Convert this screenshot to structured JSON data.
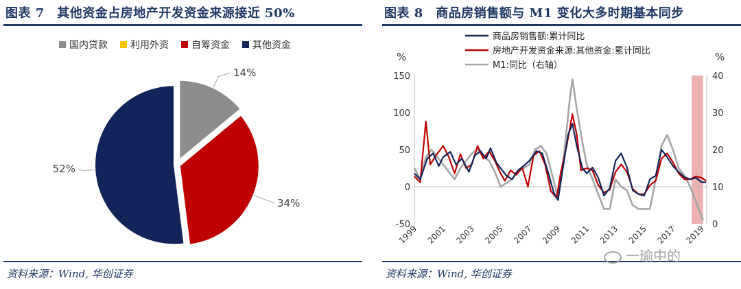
{
  "left": {
    "title": "图表 7　其他资金占房地产开发资金来源接近 50%",
    "source": "资料来源：Wind, 华创证券",
    "chart_data": {
      "type": "pie",
      "legend_position": "top",
      "legend": [
        "国内贷款",
        "利用外资",
        "自筹资金",
        "其他资金"
      ],
      "labels": [
        "国内贷款",
        "利用外资",
        "自筹资金",
        "其他资金"
      ],
      "values": [
        14,
        0,
        34,
        52
      ],
      "value_labels": [
        "14%",
        "",
        "34%",
        "52%"
      ],
      "colors": [
        "#8c8c8c",
        "#f5c200",
        "#c00000",
        "#13245a"
      ]
    }
  },
  "right": {
    "title": "图表 8　商品房销售额与 M1 变化大多时期基本同步",
    "source": "资料来源：Wind, 华创证券",
    "chart_data": {
      "type": "line",
      "legend_position": "top-left",
      "left_unit": "%",
      "right_unit": "%",
      "ylim_left": [
        -50,
        150
      ],
      "ylim_right": [
        0,
        40
      ],
      "left_ticks": [
        "150",
        "100",
        "50",
        "0",
        "-50"
      ],
      "right_ticks": [
        "40",
        "30",
        "20",
        "10",
        "0"
      ],
      "x_ticks": [
        "1999",
        "2001",
        "2003",
        "2005",
        "2007",
        "2009",
        "2011",
        "2013",
        "2015",
        "2017",
        "2019"
      ],
      "highlight_range": [
        2018.3,
        2019.1
      ],
      "highlight_color": "#e7a3a3",
      "series": [
        {
          "name": "商品房销售额:累计同比",
          "axis": "left",
          "color": "#13245a",
          "width": 2.2,
          "points": [
            [
              1999.0,
              18
            ],
            [
              1999.4,
              10
            ],
            [
              1999.9,
              38
            ],
            [
              2000.3,
              45
            ],
            [
              2000.7,
              28
            ],
            [
              2001.0,
              40
            ],
            [
              2001.5,
              47
            ],
            [
              2001.9,
              30
            ],
            [
              2002.3,
              38
            ],
            [
              2002.8,
              20
            ],
            [
              2003.2,
              42
            ],
            [
              2003.6,
              48
            ],
            [
              2004.0,
              38
            ],
            [
              2004.3,
              52
            ],
            [
              2004.7,
              33
            ],
            [
              2005.0,
              25
            ],
            [
              2005.4,
              15
            ],
            [
              2005.8,
              10
            ],
            [
              2006.2,
              22
            ],
            [
              2006.6,
              28
            ],
            [
              2007.0,
              35
            ],
            [
              2007.5,
              48
            ],
            [
              2007.9,
              45
            ],
            [
              2008.3,
              20
            ],
            [
              2008.7,
              -8
            ],
            [
              2009.0,
              -18
            ],
            [
              2009.3,
              20
            ],
            [
              2009.7,
              70
            ],
            [
              2010.0,
              85
            ],
            [
              2010.3,
              55
            ],
            [
              2010.7,
              25
            ],
            [
              2011.0,
              18
            ],
            [
              2011.4,
              26
            ],
            [
              2011.8,
              12
            ],
            [
              2012.2,
              -12
            ],
            [
              2012.6,
              -2
            ],
            [
              2013.0,
              35
            ],
            [
              2013.4,
              45
            ],
            [
              2013.8,
              26
            ],
            [
              2014.2,
              -5
            ],
            [
              2014.6,
              -10
            ],
            [
              2015.0,
              -12
            ],
            [
              2015.4,
              10
            ],
            [
              2015.8,
              15
            ],
            [
              2016.2,
              50
            ],
            [
              2016.6,
              40
            ],
            [
              2017.0,
              28
            ],
            [
              2017.4,
              20
            ],
            [
              2017.8,
              13
            ],
            [
              2018.2,
              10
            ],
            [
              2018.6,
              12
            ],
            [
              2019.0,
              6
            ],
            [
              2019.3,
              6
            ]
          ]
        },
        {
          "name": "房地产开发资金来源:其他资金:累计同比",
          "axis": "left",
          "color": "#c00000",
          "width": 2.2,
          "points": [
            [
              1999.0,
              14
            ],
            [
              1999.4,
              6
            ],
            [
              1999.8,
              88
            ],
            [
              2000.1,
              30
            ],
            [
              2000.5,
              42
            ],
            [
              2001.0,
              55
            ],
            [
              2001.4,
              40
            ],
            [
              2001.8,
              18
            ],
            [
              2002.2,
              44
            ],
            [
              2002.6,
              25
            ],
            [
              2003.0,
              30
            ],
            [
              2003.4,
              55
            ],
            [
              2003.8,
              38
            ],
            [
              2004.2,
              48
            ],
            [
              2004.6,
              35
            ],
            [
              2005.0,
              18
            ],
            [
              2005.3,
              8
            ],
            [
              2005.7,
              22
            ],
            [
              2006.1,
              16
            ],
            [
              2006.5,
              26
            ],
            [
              2006.9,
              0
            ],
            [
              2007.3,
              42
            ],
            [
              2007.7,
              48
            ],
            [
              2008.1,
              30
            ],
            [
              2008.5,
              -6
            ],
            [
              2008.9,
              -15
            ],
            [
              2009.2,
              20
            ],
            [
              2009.6,
              55
            ],
            [
              2010.0,
              98
            ],
            [
              2010.3,
              70
            ],
            [
              2010.6,
              22
            ],
            [
              2011.0,
              25
            ],
            [
              2011.4,
              22
            ],
            [
              2011.8,
              2
            ],
            [
              2012.2,
              -8
            ],
            [
              2012.6,
              -4
            ],
            [
              2013.0,
              20
            ],
            [
              2013.4,
              30
            ],
            [
              2013.8,
              20
            ],
            [
              2014.2,
              -3
            ],
            [
              2014.6,
              -10
            ],
            [
              2015.0,
              -10
            ],
            [
              2015.4,
              2
            ],
            [
              2015.8,
              8
            ],
            [
              2016.2,
              38
            ],
            [
              2016.6,
              45
            ],
            [
              2017.0,
              33
            ],
            [
              2017.4,
              18
            ],
            [
              2017.8,
              10
            ],
            [
              2018.2,
              10
            ],
            [
              2018.6,
              14
            ],
            [
              2019.0,
              12
            ],
            [
              2019.3,
              8
            ]
          ]
        },
        {
          "name": "M1:同比（右轴）",
          "axis": "right",
          "color": "#a6a6a6",
          "width": 2.6,
          "points": [
            [
              1999.0,
              15
            ],
            [
              1999.4,
              12
            ],
            [
              1999.8,
              18
            ],
            [
              2000.2,
              20
            ],
            [
              2000.6,
              18
            ],
            [
              2001.0,
              16
            ],
            [
              2001.4,
              14
            ],
            [
              2001.8,
              12
            ],
            [
              2002.2,
              15
            ],
            [
              2002.6,
              17
            ],
            [
              2003.0,
              19
            ],
            [
              2003.4,
              20
            ],
            [
              2003.8,
              18
            ],
            [
              2004.2,
              17
            ],
            [
              2004.6,
              14
            ],
            [
              2005.0,
              10
            ],
            [
              2005.4,
              11
            ],
            [
              2005.8,
              12
            ],
            [
              2006.2,
              14
            ],
            [
              2006.6,
              15
            ],
            [
              2007.0,
              16
            ],
            [
              2007.4,
              20
            ],
            [
              2007.8,
              21
            ],
            [
              2008.2,
              19
            ],
            [
              2008.6,
              13
            ],
            [
              2009.0,
              7
            ],
            [
              2009.4,
              18
            ],
            [
              2009.8,
              33
            ],
            [
              2010.0,
              39
            ],
            [
              2010.3,
              31
            ],
            [
              2010.7,
              22
            ],
            [
              2011.0,
              16
            ],
            [
              2011.4,
              12
            ],
            [
              2011.8,
              8
            ],
            [
              2012.2,
              4
            ],
            [
              2012.6,
              4
            ],
            [
              2013.0,
              12
            ],
            [
              2013.4,
              10
            ],
            [
              2013.8,
              9
            ],
            [
              2014.2,
              5
            ],
            [
              2014.6,
              4
            ],
            [
              2015.0,
              4
            ],
            [
              2015.4,
              4
            ],
            [
              2015.8,
              12
            ],
            [
              2016.2,
              21
            ],
            [
              2016.6,
              24
            ],
            [
              2017.0,
              20
            ],
            [
              2017.4,
              15
            ],
            [
              2017.8,
              13
            ],
            [
              2018.2,
              10
            ],
            [
              2018.5,
              7
            ],
            [
              2018.8,
              4
            ],
            [
              2019.1,
              1
            ]
          ]
        }
      ]
    }
  },
  "watermark": "一瑜中的"
}
